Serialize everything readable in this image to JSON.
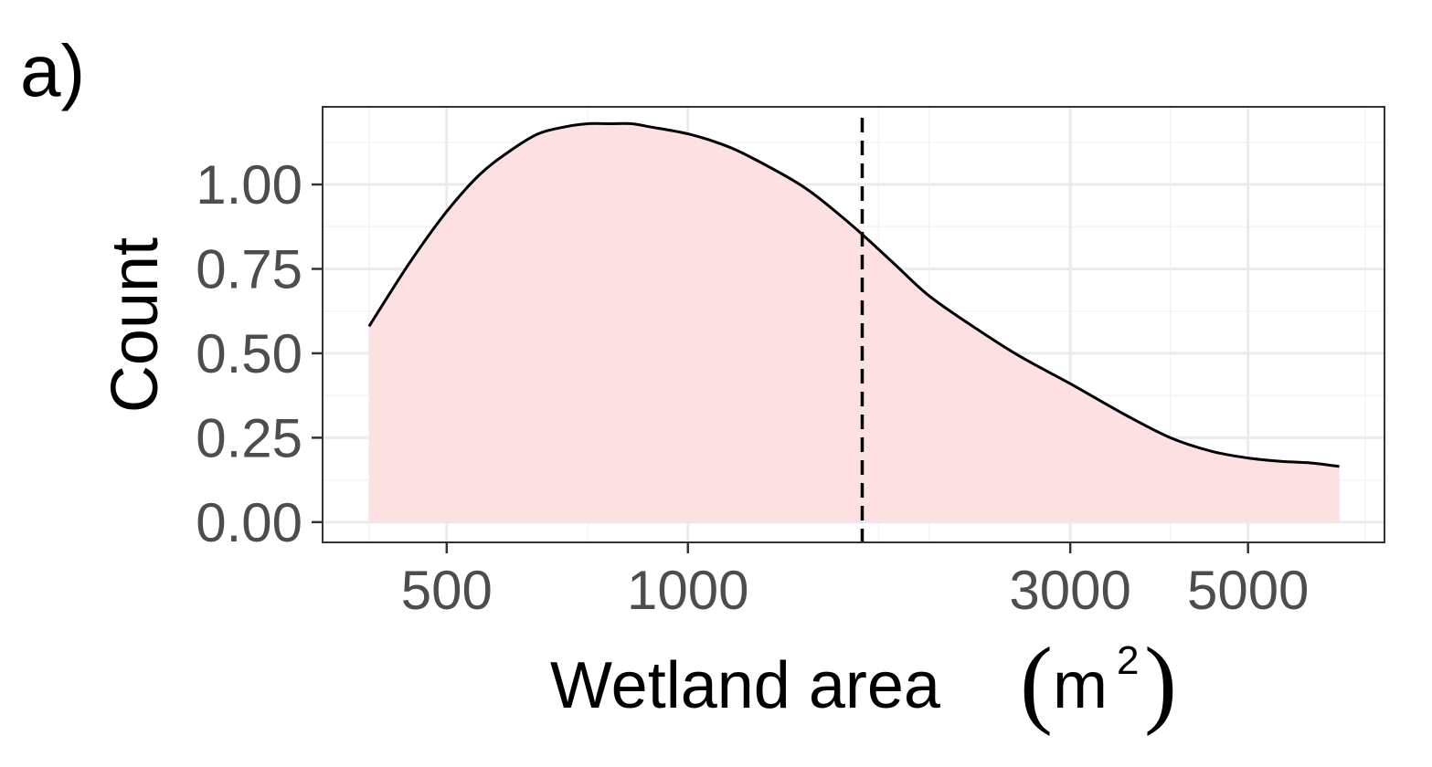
{
  "panel_label": "a)",
  "colors": {
    "fill": "#fde0e2",
    "line": "#000000",
    "grid_major": "#ebebeb",
    "grid_minor": "#f3f3f3",
    "tick_text": "#4d4d4d",
    "border": "#333333"
  },
  "chart_data": {
    "type": "area",
    "xlabel_main": "Wetland area ",
    "xlabel_paren_open": "(",
    "xlabel_unit": "m",
    "xlabel_sup": "2",
    "xlabel_paren_close": ")",
    "ylabel": "Count",
    "x_scale": "log10",
    "xlim": [
      350,
      7400
    ],
    "ylim": [
      -0.06,
      1.23
    ],
    "x_ticks": [
      {
        "value": 500,
        "label": "500"
      },
      {
        "value": 1000,
        "label": "1000"
      },
      {
        "value": 3000,
        "label": "3000"
      },
      {
        "value": 5000,
        "label": "5000"
      }
    ],
    "x_minor_gridlines": [
      400,
      750,
      1730,
      2000,
      4000,
      7000
    ],
    "y_ticks": [
      {
        "value": 0.0,
        "label": "0.00"
      },
      {
        "value": 0.25,
        "label": "0.25"
      },
      {
        "value": 0.5,
        "label": "0.50"
      },
      {
        "value": 0.75,
        "label": "0.75"
      },
      {
        "value": 1.0,
        "label": "1.00"
      }
    ],
    "series": [
      {
        "x": [
          400,
          450,
          500,
          550,
          600,
          650,
          700,
          750,
          800,
          850,
          900,
          1000,
          1100,
          1200,
          1400,
          1600,
          1800,
          2000,
          2300,
          2600,
          3000,
          3500,
          4000,
          4500,
          5000,
          5500,
          6000,
          6500
        ],
        "y": [
          0.58,
          0.77,
          0.92,
          1.03,
          1.1,
          1.15,
          1.17,
          1.18,
          1.18,
          1.18,
          1.17,
          1.15,
          1.12,
          1.08,
          0.99,
          0.88,
          0.77,
          0.67,
          0.57,
          0.49,
          0.41,
          0.32,
          0.25,
          0.21,
          0.19,
          0.18,
          0.175,
          0.165
        ]
      }
    ],
    "vline": {
      "x": 1650,
      "style": "dashed"
    },
    "grid": true
  }
}
